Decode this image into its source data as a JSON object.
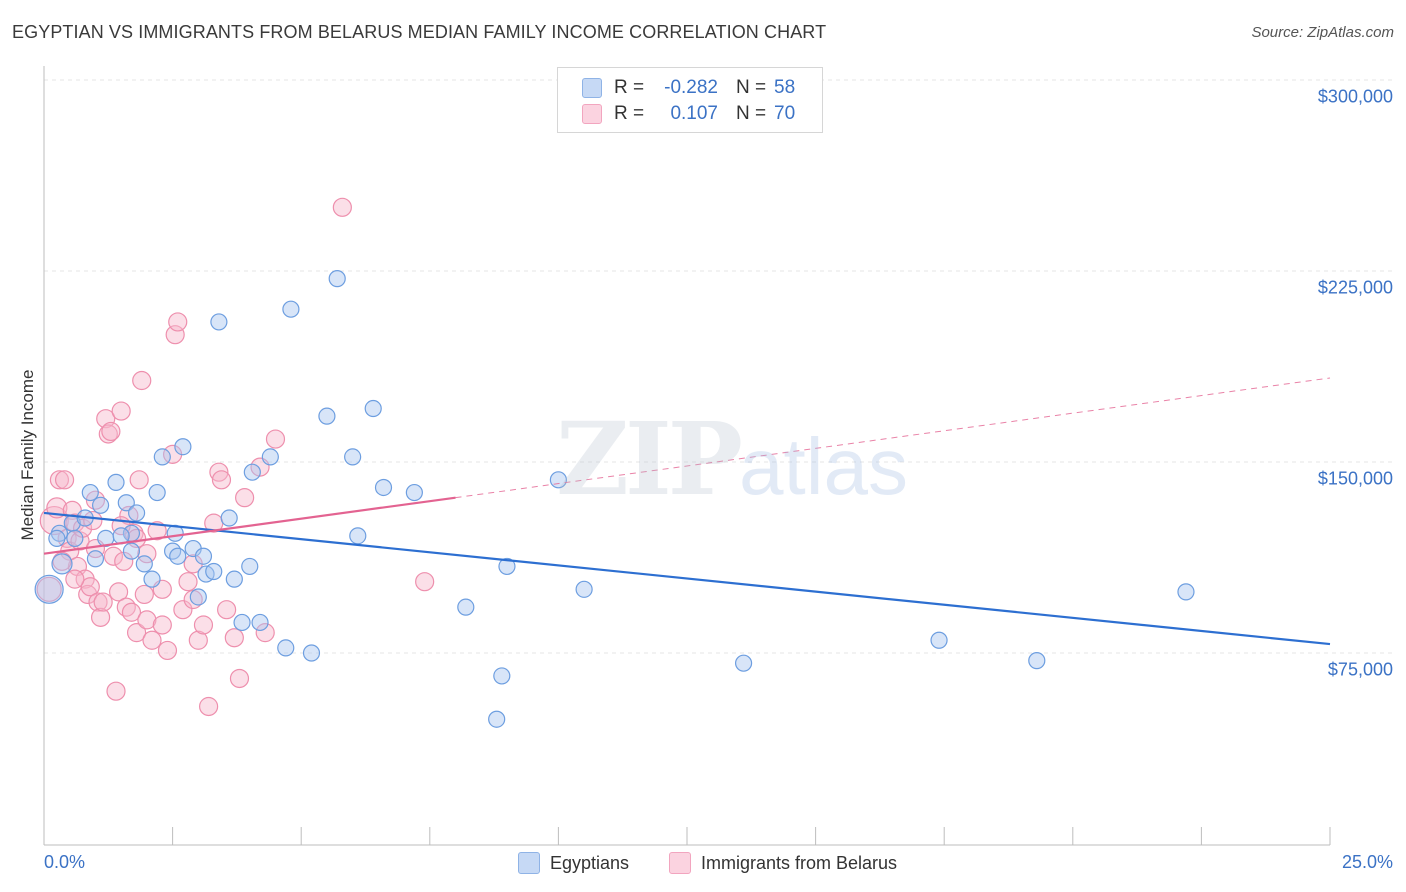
{
  "header": {
    "title": "EGYPTIAN VS IMMIGRANTS FROM BELARUS MEDIAN FAMILY INCOME CORRELATION CHART",
    "source": "Source: ZipAtlas.com"
  },
  "watermark": {
    "zip": "ZIP",
    "atlas": "atlas"
  },
  "legend": {
    "rows": [
      {
        "r_label": "R =",
        "r_value": "-0.282",
        "n_label": "N =",
        "n_value": "58",
        "color": "#a9c5ef"
      },
      {
        "r_label": "R =",
        "r_value": "0.107",
        "n_label": "N =",
        "n_value": "70",
        "color": "#f7b8cc"
      }
    ]
  },
  "bottom_legend": {
    "series1": "Egyptians",
    "series2": "Immigrants from Belarus"
  },
  "colors": {
    "blue_fill": "#a9c5ef",
    "blue_stroke": "#6d9ee0",
    "blue_line": "#2d6fd1",
    "pink_fill": "#f7b8cc",
    "pink_stroke": "#ee8fad",
    "pink_line": "#e36391",
    "axis_text": "#3b72c5",
    "grid": "#e6e6e6"
  },
  "chart_data": {
    "type": "scatter",
    "title": "EGYPTIAN VS IMMIGRANTS FROM BELARUS MEDIAN FAMILY INCOME CORRELATION CHART",
    "xlabel": "",
    "ylabel": "Median Family Income",
    "xlim": [
      0,
      25
    ],
    "ylim": [
      0,
      320000
    ],
    "x_tick_labels": [
      "0.0%",
      "25.0%"
    ],
    "y_ticks": [
      75000,
      150000,
      225000,
      300000
    ],
    "y_tick_labels": [
      "$75,000",
      "$150,000",
      "$225,000",
      "$300,000"
    ],
    "grid": true,
    "legend_position": "top-center",
    "series": [
      {
        "name": "Egyptians",
        "r": -0.282,
        "n": 58,
        "trend": {
          "x": [
            0,
            25
          ],
          "y": [
            130000,
            78500
          ],
          "style": "solid"
        },
        "points": [
          [
            0.1,
            100000,
            14
          ],
          [
            0.35,
            110000,
            10
          ],
          [
            0.3,
            122000,
            8
          ],
          [
            0.55,
            126000,
            8
          ],
          [
            0.6,
            120000,
            8
          ],
          [
            0.9,
            138000,
            8
          ],
          [
            1.2,
            120000,
            8
          ],
          [
            1.1,
            133000,
            8
          ],
          [
            1.4,
            142000,
            8
          ],
          [
            1.6,
            134000,
            8
          ],
          [
            1.8,
            130000,
            8
          ],
          [
            1.7,
            122000,
            8
          ],
          [
            1.0,
            112000,
            8
          ],
          [
            1.7,
            115000,
            8
          ],
          [
            1.95,
            110000,
            8
          ],
          [
            2.1,
            104000,
            8
          ],
          [
            2.2,
            138000,
            8
          ],
          [
            2.3,
            152000,
            8
          ],
          [
            2.5,
            115000,
            8
          ],
          [
            2.55,
            122000,
            8
          ],
          [
            2.6,
            113000,
            8
          ],
          [
            2.7,
            156000,
            8
          ],
          [
            2.9,
            116000,
            8
          ],
          [
            3.0,
            97000,
            8
          ],
          [
            3.1,
            113000,
            8
          ],
          [
            3.15,
            106000,
            8
          ],
          [
            3.3,
            107000,
            8
          ],
          [
            3.4,
            205000,
            8
          ],
          [
            3.6,
            128000,
            8
          ],
          [
            3.7,
            104000,
            8
          ],
          [
            3.85,
            87000,
            8
          ],
          [
            4.0,
            109000,
            8
          ],
          [
            4.05,
            146000,
            8
          ],
          [
            4.2,
            87000,
            8
          ],
          [
            4.4,
            152000,
            8
          ],
          [
            4.7,
            77000,
            8
          ],
          [
            4.8,
            210000,
            8
          ],
          [
            5.2,
            75000,
            8
          ],
          [
            5.5,
            168000,
            8
          ],
          [
            5.7,
            222000,
            8
          ],
          [
            6.0,
            152000,
            8
          ],
          [
            6.1,
            121000,
            8
          ],
          [
            6.4,
            171000,
            8
          ],
          [
            6.6,
            140000,
            8
          ],
          [
            7.2,
            138000,
            8
          ],
          [
            8.2,
            93000,
            8
          ],
          [
            8.8,
            49000,
            8
          ],
          [
            8.9,
            66000,
            8
          ],
          [
            9.0,
            109000,
            8
          ],
          [
            10.0,
            143000,
            8
          ],
          [
            10.5,
            100000,
            8
          ],
          [
            13.6,
            71000,
            8
          ],
          [
            17.4,
            80000,
            8
          ],
          [
            19.3,
            72000,
            8
          ],
          [
            22.2,
            99000,
            8
          ],
          [
            0.25,
            120000,
            8
          ],
          [
            0.8,
            128000,
            8
          ],
          [
            1.5,
            121000,
            8
          ]
        ]
      },
      {
        "name": "Immigrants from Belarus",
        "r": 0.107,
        "n": 70,
        "trend_solid": {
          "x": [
            0,
            8
          ],
          "y": [
            114000,
            136000
          ],
          "style": "solid"
        },
        "trend_dashed": {
          "x": [
            8,
            25
          ],
          "y": [
            136000,
            183000
          ],
          "style": "dashed"
        },
        "points": [
          [
            0.1,
            100000,
            12
          ],
          [
            0.2,
            127000,
            14
          ],
          [
            0.25,
            132000,
            10
          ],
          [
            0.3,
            143000,
            9
          ],
          [
            0.4,
            143000,
            9
          ],
          [
            0.45,
            120000,
            9
          ],
          [
            0.5,
            115000,
            9
          ],
          [
            0.55,
            131000,
            9
          ],
          [
            0.6,
            126000,
            9
          ],
          [
            0.65,
            109000,
            9
          ],
          [
            0.7,
            119000,
            9
          ],
          [
            0.75,
            124000,
            9
          ],
          [
            0.8,
            104000,
            9
          ],
          [
            0.85,
            98000,
            9
          ],
          [
            0.9,
            101000,
            9
          ],
          [
            0.95,
            127000,
            9
          ],
          [
            1.0,
            116000,
            9
          ],
          [
            1.05,
            95000,
            9
          ],
          [
            1.1,
            89000,
            9
          ],
          [
            1.15,
            95000,
            9
          ],
          [
            1.2,
            167000,
            9
          ],
          [
            1.25,
            161000,
            9
          ],
          [
            1.3,
            162000,
            9
          ],
          [
            1.35,
            113000,
            9
          ],
          [
            1.4,
            60000,
            9
          ],
          [
            1.45,
            99000,
            9
          ],
          [
            1.5,
            170000,
            9
          ],
          [
            1.55,
            111000,
            9
          ],
          [
            1.6,
            93000,
            9
          ],
          [
            1.65,
            129000,
            9
          ],
          [
            1.7,
            91000,
            9
          ],
          [
            1.75,
            122000,
            9
          ],
          [
            1.8,
            83000,
            9
          ],
          [
            1.85,
            143000,
            9
          ],
          [
            1.9,
            182000,
            9
          ],
          [
            1.95,
            98000,
            9
          ],
          [
            2.0,
            88000,
            9
          ],
          [
            2.1,
            80000,
            9
          ],
          [
            2.2,
            123000,
            9
          ],
          [
            2.3,
            86000,
            9
          ],
          [
            2.4,
            76000,
            9
          ],
          [
            2.5,
            153000,
            9
          ],
          [
            2.55,
            200000,
            9
          ],
          [
            2.6,
            205000,
            9
          ],
          [
            2.7,
            92000,
            9
          ],
          [
            2.8,
            103000,
            9
          ],
          [
            2.9,
            110000,
            9
          ],
          [
            3.0,
            80000,
            9
          ],
          [
            3.1,
            86000,
            9
          ],
          [
            3.2,
            54000,
            9
          ],
          [
            3.3,
            126000,
            9
          ],
          [
            3.4,
            146000,
            9
          ],
          [
            3.45,
            143000,
            9
          ],
          [
            3.55,
            92000,
            9
          ],
          [
            3.7,
            81000,
            9
          ],
          [
            3.8,
            65000,
            9
          ],
          [
            3.9,
            136000,
            9
          ],
          [
            4.2,
            148000,
            9
          ],
          [
            4.3,
            83000,
            9
          ],
          [
            4.5,
            159000,
            9
          ],
          [
            5.8,
            250000,
            9
          ],
          [
            7.4,
            103000,
            9
          ],
          [
            0.35,
            111000,
            9
          ],
          [
            1.0,
            135000,
            9
          ],
          [
            1.5,
            125000,
            9
          ],
          [
            2.0,
            114000,
            9
          ],
          [
            2.3,
            100000,
            9
          ],
          [
            0.6,
            104000,
            9
          ],
          [
            1.8,
            120000,
            9
          ],
          [
            2.9,
            96000,
            9
          ]
        ]
      }
    ]
  }
}
